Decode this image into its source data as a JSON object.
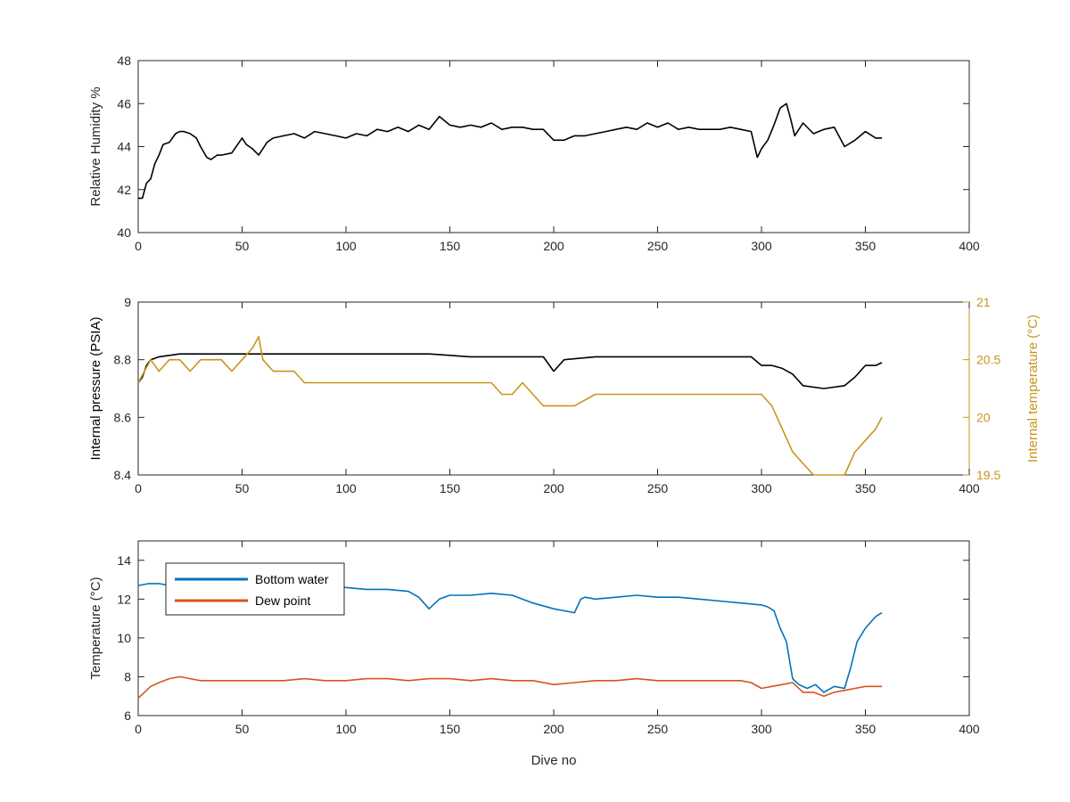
{
  "chart_data": [
    {
      "type": "line",
      "xlabel": "",
      "ylabel": "Relative Humidity %",
      "xlim": [
        0,
        400
      ],
      "ylim": [
        40,
        48
      ],
      "xticks": [
        0,
        50,
        100,
        150,
        200,
        250,
        300,
        350,
        400
      ],
      "yticks": [
        40,
        42,
        44,
        46,
        48
      ],
      "grid": false,
      "series": [
        {
          "color": "#000000",
          "x": [
            0,
            2,
            4,
            6,
            8,
            10,
            12,
            15,
            18,
            20,
            22,
            25,
            28,
            30,
            33,
            35,
            38,
            40,
            45,
            50,
            52,
            55,
            58,
            60,
            62,
            65,
            70,
            75,
            80,
            85,
            90,
            95,
            100,
            105,
            110,
            115,
            120,
            125,
            130,
            135,
            140,
            145,
            150,
            155,
            160,
            165,
            170,
            175,
            180,
            185,
            190,
            195,
            200,
            205,
            210,
            215,
            220,
            225,
            230,
            235,
            240,
            245,
            250,
            255,
            260,
            265,
            270,
            275,
            280,
            285,
            290,
            295,
            298,
            300,
            303,
            306,
            309,
            312,
            314,
            316,
            320,
            325,
            330,
            335,
            340,
            345,
            350,
            355,
            358
          ],
          "y": [
            41.6,
            41.6,
            42.3,
            42.5,
            43.2,
            43.6,
            44.1,
            44.2,
            44.6,
            44.7,
            44.7,
            44.6,
            44.4,
            44.0,
            43.5,
            43.4,
            43.6,
            43.6,
            43.7,
            44.4,
            44.1,
            43.9,
            43.6,
            43.9,
            44.2,
            44.4,
            44.5,
            44.6,
            44.4,
            44.7,
            44.6,
            44.5,
            44.4,
            44.6,
            44.5,
            44.8,
            44.7,
            44.9,
            44.7,
            45.0,
            44.8,
            45.4,
            45.0,
            44.9,
            45.0,
            44.9,
            45.1,
            44.8,
            44.9,
            44.9,
            44.8,
            44.8,
            44.3,
            44.3,
            44.5,
            44.5,
            44.6,
            44.7,
            44.8,
            44.9,
            44.8,
            45.1,
            44.9,
            45.1,
            44.8,
            44.9,
            44.8,
            44.8,
            44.8,
            44.9,
            44.8,
            44.7,
            43.5,
            43.9,
            44.3,
            45.0,
            45.8,
            46.0,
            45.3,
            44.5,
            45.1,
            44.6,
            44.8,
            44.9,
            44.0,
            44.3,
            44.7,
            44.4,
            44.4
          ]
        }
      ]
    },
    {
      "type": "line",
      "xlabel": "",
      "ylabel": "Internal pressure (PSIA)",
      "ylabel_right": "Internal temperature (°C)",
      "xlim": [
        0,
        400
      ],
      "ylim": [
        8.4,
        9
      ],
      "ylim_right": [
        19.5,
        21
      ],
      "xticks": [
        0,
        50,
        100,
        150,
        200,
        250,
        300,
        350,
        400
      ],
      "yticks": [
        8.4,
        8.6,
        8.8,
        9
      ],
      "yticks_right": [
        19.5,
        20,
        20.5,
        21
      ],
      "grid": false,
      "series": [
        {
          "color": "#000000",
          "axis": "left",
          "x": [
            0,
            2,
            4,
            6,
            10,
            20,
            40,
            60,
            80,
            100,
            120,
            140,
            160,
            180,
            195,
            200,
            205,
            220,
            240,
            260,
            280,
            295,
            300,
            305,
            310,
            315,
            320,
            330,
            340,
            345,
            350,
            355,
            358
          ],
          "y": [
            8.72,
            8.74,
            8.78,
            8.8,
            8.81,
            8.82,
            8.82,
            8.82,
            8.82,
            8.82,
            8.82,
            8.82,
            8.81,
            8.81,
            8.81,
            8.76,
            8.8,
            8.81,
            8.81,
            8.81,
            8.81,
            8.81,
            8.78,
            8.78,
            8.77,
            8.75,
            8.71,
            8.7,
            8.71,
            8.74,
            8.78,
            8.78,
            8.79
          ]
        },
        {
          "color": "#C8951E",
          "axis": "right",
          "x": [
            0,
            3,
            6,
            10,
            15,
            20,
            25,
            30,
            35,
            40,
            45,
            50,
            55,
            58,
            60,
            65,
            70,
            75,
            80,
            90,
            100,
            110,
            120,
            130,
            140,
            150,
            160,
            170,
            175,
            180,
            185,
            190,
            195,
            200,
            210,
            220,
            230,
            240,
            250,
            260,
            270,
            280,
            290,
            300,
            305,
            310,
            315,
            320,
            325,
            330,
            335,
            340,
            345,
            350,
            355,
            358
          ],
          "y": [
            20.3,
            20.4,
            20.5,
            20.4,
            20.5,
            20.5,
            20.4,
            20.5,
            20.5,
            20.5,
            20.4,
            20.5,
            20.6,
            20.7,
            20.5,
            20.4,
            20.4,
            20.4,
            20.3,
            20.3,
            20.3,
            20.3,
            20.3,
            20.3,
            20.3,
            20.3,
            20.3,
            20.3,
            20.2,
            20.2,
            20.3,
            20.2,
            20.1,
            20.1,
            20.1,
            20.2,
            20.2,
            20.2,
            20.2,
            20.2,
            20.2,
            20.2,
            20.2,
            20.2,
            20.1,
            19.9,
            19.7,
            19.6,
            19.5,
            19.5,
            19.5,
            19.5,
            19.7,
            19.8,
            19.9,
            20.0
          ]
        }
      ]
    },
    {
      "type": "line",
      "xlabel": "Dive no",
      "ylabel": "Temperature (°C)",
      "xlim": [
        0,
        400
      ],
      "ylim": [
        6,
        15
      ],
      "xticks": [
        0,
        50,
        100,
        150,
        200,
        250,
        300,
        350,
        400
      ],
      "yticks": [
        6,
        8,
        10,
        12,
        14
      ],
      "grid": false,
      "legend_position": "top-left",
      "series": [
        {
          "name": "Bottom water",
          "color": "#0072BD",
          "x": [
            0,
            5,
            10,
            15,
            20,
            30,
            40,
            50,
            60,
            70,
            80,
            90,
            100,
            110,
            120,
            130,
            135,
            140,
            145,
            150,
            160,
            170,
            180,
            190,
            200,
            205,
            210,
            213,
            215,
            220,
            230,
            240,
            250,
            260,
            270,
            280,
            290,
            300,
            303,
            306,
            309,
            312,
            315,
            318,
            322,
            326,
            330,
            335,
            340,
            343,
            346,
            350,
            355,
            358
          ],
          "y": [
            12.7,
            12.8,
            12.8,
            12.7,
            12.8,
            12.9,
            12.9,
            12.9,
            12.8,
            12.8,
            12.8,
            12.7,
            12.6,
            12.5,
            12.5,
            12.4,
            12.1,
            11.5,
            12.0,
            12.2,
            12.2,
            12.3,
            12.2,
            11.8,
            11.5,
            11.4,
            11.3,
            12.0,
            12.1,
            12.0,
            12.1,
            12.2,
            12.1,
            12.1,
            12.0,
            11.9,
            11.8,
            11.7,
            11.6,
            11.4,
            10.5,
            9.8,
            7.9,
            7.6,
            7.4,
            7.6,
            7.2,
            7.5,
            7.4,
            8.5,
            9.8,
            10.5,
            11.1,
            11.3
          ]
        },
        {
          "name": "Dew point",
          "color": "#D95319",
          "x": [
            0,
            3,
            6,
            10,
            15,
            20,
            25,
            30,
            40,
            50,
            60,
            70,
            80,
            90,
            100,
            110,
            120,
            130,
            140,
            150,
            160,
            170,
            180,
            190,
            200,
            210,
            220,
            230,
            240,
            250,
            260,
            270,
            280,
            290,
            295,
            300,
            305,
            310,
            315,
            320,
            325,
            330,
            335,
            340,
            345,
            350,
            355,
            358
          ],
          "y": [
            6.9,
            7.2,
            7.5,
            7.7,
            7.9,
            8.0,
            7.9,
            7.8,
            7.8,
            7.8,
            7.8,
            7.8,
            7.9,
            7.8,
            7.8,
            7.9,
            7.9,
            7.8,
            7.9,
            7.9,
            7.8,
            7.9,
            7.8,
            7.8,
            7.6,
            7.7,
            7.8,
            7.8,
            7.9,
            7.8,
            7.8,
            7.8,
            7.8,
            7.8,
            7.7,
            7.4,
            7.5,
            7.6,
            7.7,
            7.2,
            7.2,
            7.0,
            7.2,
            7.3,
            7.4,
            7.5,
            7.5,
            7.5
          ]
        }
      ]
    }
  ],
  "axis_color": "#262626",
  "right_axis_color": "#C8951E"
}
